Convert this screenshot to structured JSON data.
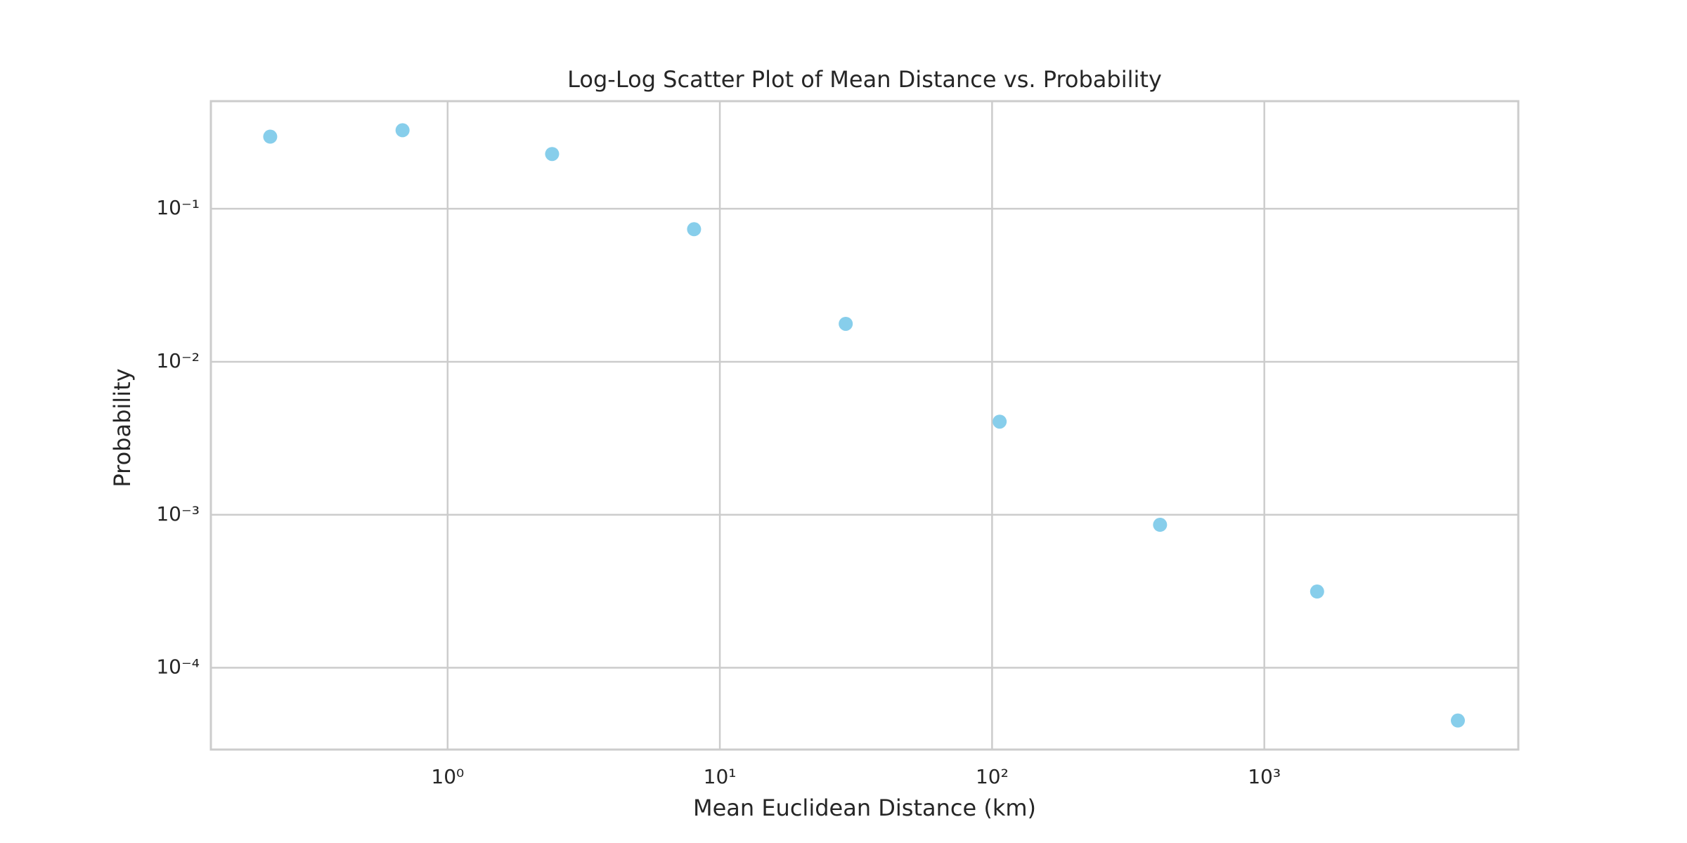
{
  "chart_data": {
    "type": "scatter",
    "title": "Log-Log Scatter Plot of Mean Distance vs. Probability",
    "xlabel": "Mean Euclidean Distance (km)",
    "ylabel": "Probability",
    "x": [
      0.223,
      0.683,
      2.42,
      8.04,
      29.0,
      106.6,
      414,
      1563,
      5140
    ],
    "values": [
      0.296,
      0.326,
      0.228,
      0.0735,
      0.0177,
      0.00406,
      0.00086,
      0.000315,
      4.52e-05
    ],
    "color": "#87ceeb",
    "xscale": "log",
    "yscale": "log",
    "grid": true,
    "xlim": [
      0.135,
      8570
    ],
    "ylim": [
      2.92e-05,
      0.505
    ],
    "xticks": [
      {
        "value": 1,
        "label": "10⁰"
      },
      {
        "value": 10,
        "label": "10¹"
      },
      {
        "value": 100,
        "label": "10²"
      },
      {
        "value": 1000,
        "label": "10³"
      }
    ],
    "yticks": [
      {
        "value": 0.0001,
        "label": "10⁻⁴"
      },
      {
        "value": 0.001,
        "label": "10⁻³"
      },
      {
        "value": 0.01,
        "label": "10⁻²"
      },
      {
        "value": 0.1,
        "label": "10⁻¹"
      }
    ]
  }
}
